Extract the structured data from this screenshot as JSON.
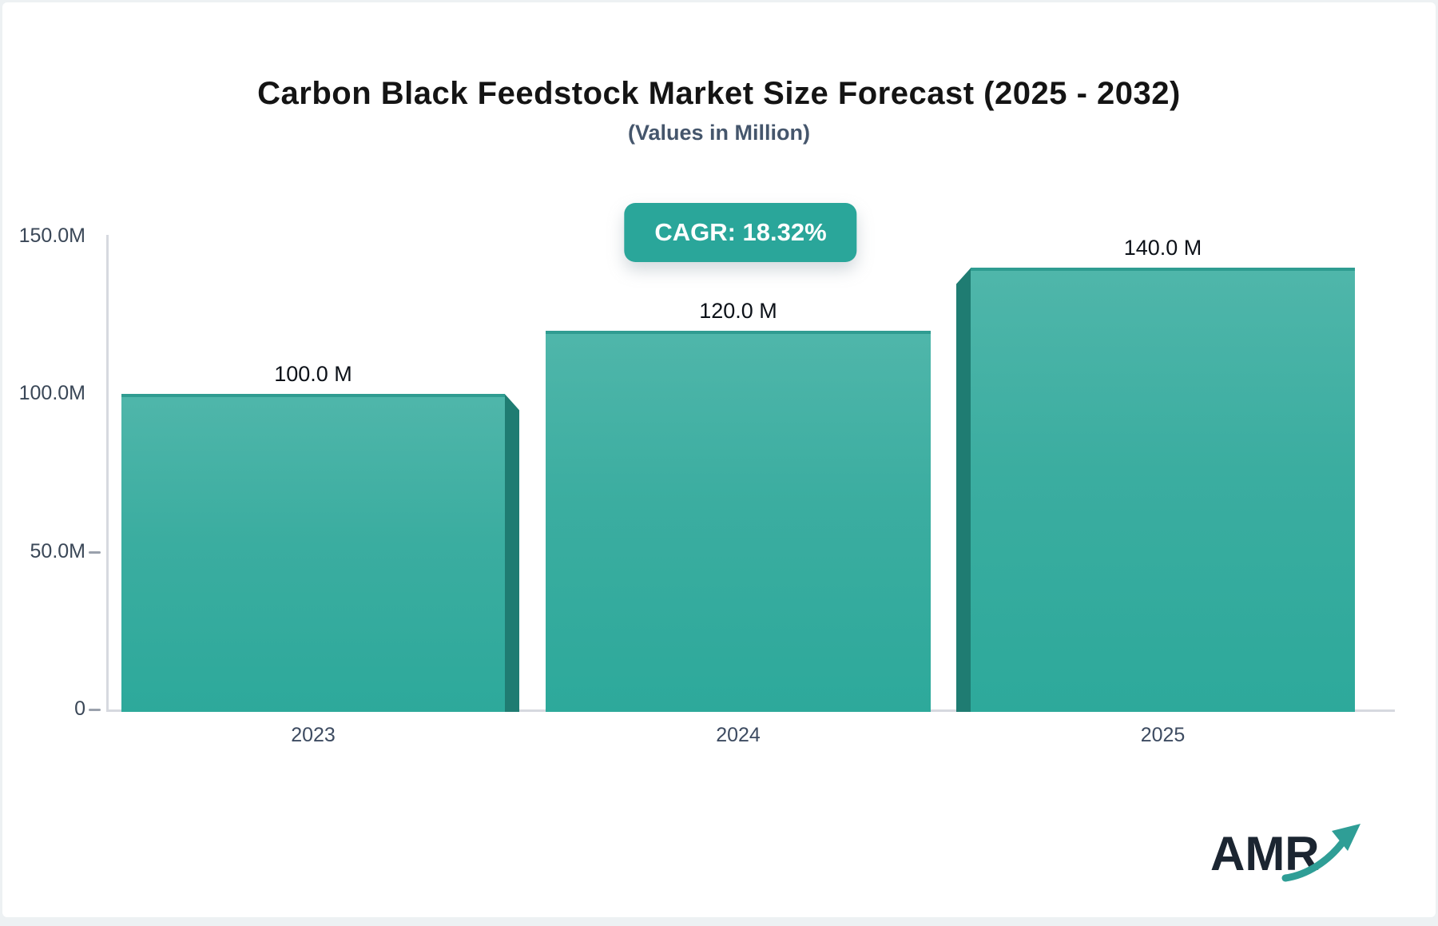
{
  "header": {
    "title": "Carbon Black Feedstock Market Size Forecast (2025 - 2032)",
    "subtitle": "(Values in Million)"
  },
  "badge": {
    "label": "CAGR: 18.32%",
    "color": "#2aa69a"
  },
  "chart_data": {
    "type": "bar",
    "title": "Carbon Black Feedstock Market Size Forecast (2025 - 2032)",
    "subtitle": "(Values in Million)",
    "categories": [
      "2023",
      "2024",
      "2025"
    ],
    "values": [
      100,
      120,
      140
    ],
    "value_labels": [
      "100.0 M",
      "120.0 M",
      "140.0 M"
    ],
    "unit": "Million",
    "ylim": [
      0,
      150
    ],
    "yticks": [
      {
        "label": "150.0M",
        "value": 150,
        "dash": false
      },
      {
        "label": "100.0M",
        "value": 100,
        "dash": false
      },
      {
        "label": "50.0M",
        "value": 50,
        "dash": true
      },
      {
        "label": "0",
        "value": 0,
        "dash": true
      }
    ],
    "grid": false,
    "legend": false,
    "bar_color_top": "#4fb6aa",
    "bar_color_bottom": "#2da99b",
    "bar_side_color": "#1f7c72",
    "axis_color": "#d6d9df"
  },
  "logo": {
    "text": "AMR",
    "text_color": "#1b2531",
    "arrow_color": "#2f9e96"
  }
}
